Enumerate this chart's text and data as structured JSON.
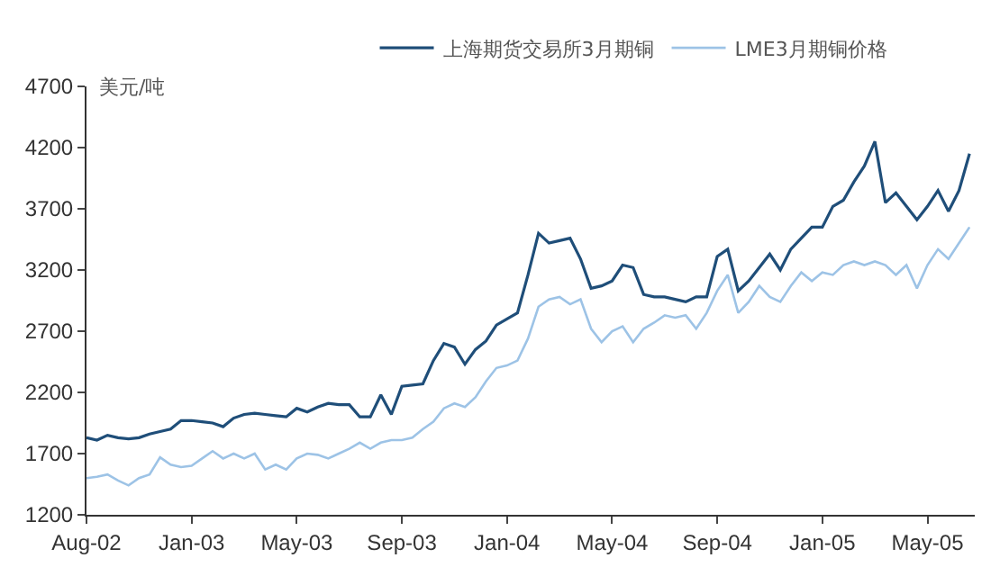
{
  "chart_data": {
    "type": "line",
    "ylabel": "美元/吨",
    "categories": [
      "Aug-02",
      null,
      null,
      null,
      null,
      null,
      null,
      null,
      null,
      null,
      "Jan-03",
      null,
      null,
      null,
      null,
      null,
      null,
      null,
      null,
      null,
      "May-03",
      null,
      null,
      null,
      null,
      null,
      null,
      null,
      null,
      null,
      "Sep-03",
      null,
      null,
      null,
      null,
      null,
      null,
      null,
      null,
      null,
      "Jan-04",
      null,
      null,
      null,
      null,
      null,
      null,
      null,
      null,
      null,
      "May-04",
      null,
      null,
      null,
      null,
      null,
      null,
      null,
      null,
      null,
      "Sep-04",
      null,
      null,
      null,
      null,
      null,
      null,
      null,
      null,
      null,
      "Jan-05",
      null,
      null,
      null,
      null,
      null,
      null,
      null,
      null,
      null,
      "May-05",
      null,
      null,
      null,
      null
    ],
    "ylim": [
      1200,
      4700
    ],
    "yticks": [
      1200,
      1700,
      2200,
      2700,
      3200,
      3700,
      4200,
      4700
    ],
    "legend": "top",
    "marker": "none",
    "line_style": "solid",
    "series": [
      {
        "name": "上海期货交易所3月期铜",
        "color": "#1f4e79",
        "values": [
          1830,
          1810,
          1850,
          1830,
          1820,
          1830,
          1860,
          1880,
          1900,
          1970,
          1970,
          1960,
          1950,
          1920,
          1990,
          2020,
          2030,
          2020,
          2010,
          2000,
          2070,
          2040,
          2080,
          2110,
          2100,
          2100,
          2000,
          2000,
          2180,
          2020,
          2250,
          2260,
          2270,
          2460,
          2600,
          2570,
          2430,
          2550,
          2620,
          2750,
          2800,
          2850,
          3160,
          3500,
          3420,
          3440,
          3460,
          3290,
          3050,
          3070,
          3110,
          3240,
          3220,
          3000,
          2980,
          2980,
          2960,
          2940,
          2980,
          2980,
          3310,
          3370,
          3030,
          3110,
          3220,
          3330,
          3200,
          3370,
          3460,
          3550,
          3550,
          3720,
          3770,
          3920,
          4050,
          4250,
          3750,
          3830,
          3720,
          3610,
          3720,
          3850,
          3680,
          3850,
          4150
        ]
      },
      {
        "name": "LME3月期铜价格",
        "color": "#9dc3e6",
        "values": [
          1500,
          1510,
          1530,
          1480,
          1440,
          1500,
          1530,
          1670,
          1610,
          1590,
          1600,
          1660,
          1720,
          1660,
          1700,
          1660,
          1700,
          1570,
          1610,
          1570,
          1660,
          1700,
          1690,
          1660,
          1700,
          1740,
          1790,
          1740,
          1790,
          1810,
          1810,
          1830,
          1900,
          1960,
          2070,
          2110,
          2080,
          2160,
          2290,
          2400,
          2420,
          2460,
          2640,
          2900,
          2960,
          2980,
          2920,
          2960,
          2720,
          2610,
          2700,
          2740,
          2610,
          2720,
          2770,
          2830,
          2810,
          2830,
          2720,
          2850,
          3030,
          3160,
          2850,
          2940,
          3070,
          2980,
          2940,
          3070,
          3180,
          3110,
          3180,
          3160,
          3240,
          3270,
          3240,
          3270,
          3240,
          3160,
          3240,
          3050,
          3240,
          3370,
          3290,
          3420,
          3550
        ]
      }
    ]
  }
}
